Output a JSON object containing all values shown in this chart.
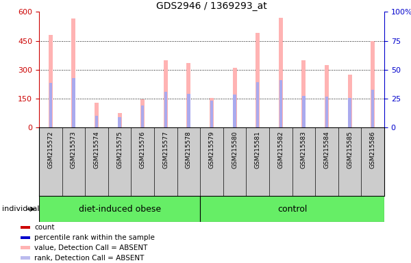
{
  "title": "GDS2946 / 1369293_at",
  "samples": [
    "GSM215572",
    "GSM215573",
    "GSM215574",
    "GSM215575",
    "GSM215576",
    "GSM215577",
    "GSM215578",
    "GSM215579",
    "GSM215580",
    "GSM215581",
    "GSM215582",
    "GSM215583",
    "GSM215584",
    "GSM215585",
    "GSM215586"
  ],
  "count_values": [
    480,
    565,
    130,
    75,
    145,
    350,
    335,
    155,
    310,
    490,
    570,
    350,
    325,
    275,
    450
  ],
  "rank_values": [
    230,
    255,
    60,
    55,
    115,
    185,
    175,
    140,
    170,
    235,
    245,
    165,
    160,
    155,
    195
  ],
  "groups": [
    {
      "label": "diet-induced obese",
      "n": 7
    },
    {
      "label": "control",
      "n": 8
    }
  ],
  "group_boundary": 7,
  "ylim_left": [
    0,
    600
  ],
  "ylim_right": [
    0,
    100
  ],
  "yticks_left": [
    0,
    150,
    300,
    450,
    600
  ],
  "yticks_right": [
    0,
    25,
    50,
    75,
    100
  ],
  "bar_width": 0.18,
  "count_color": "#ffb3b3",
  "rank_color": "#aaaaee",
  "rank_dot_color": "#8888cc",
  "legend_count_color": "#cc0000",
  "legend_rank_color": "#0000cc",
  "legend_absent_count_color": "#ffb3b3",
  "legend_absent_rank_color": "#bbbbee",
  "left_axis_color": "#cc0000",
  "right_axis_color": "#0000cc",
  "group_color": "#66ee66",
  "sample_bg_color": "#cccccc",
  "plot_bg_color": "#ffffff"
}
